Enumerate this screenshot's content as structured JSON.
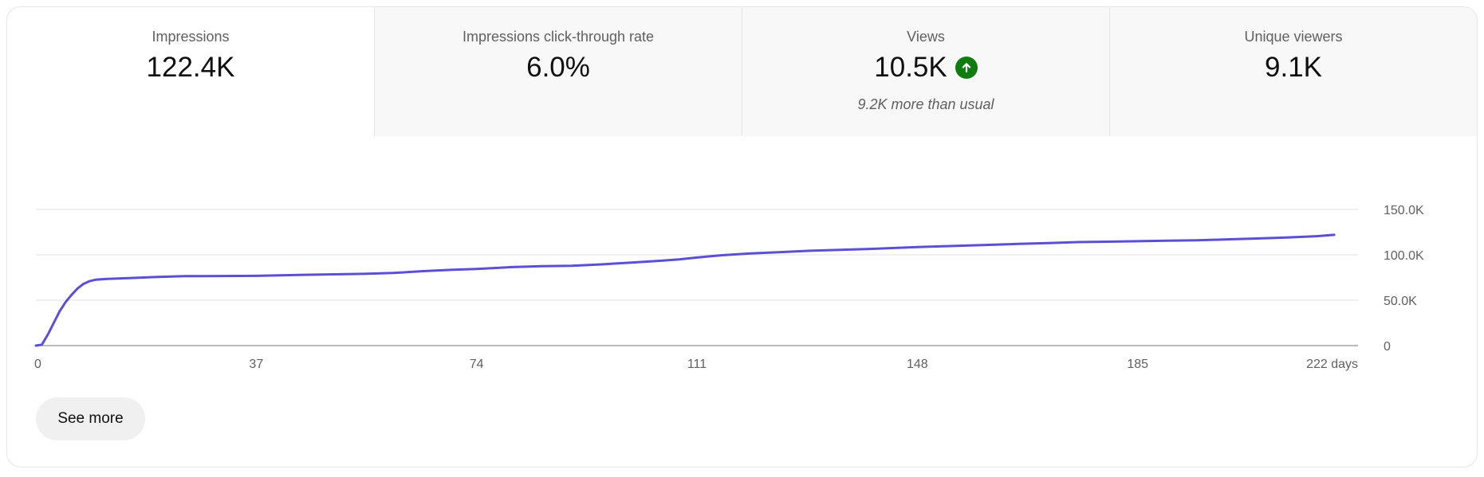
{
  "tabs": [
    {
      "label": "Impressions",
      "value": "122.4K",
      "note": ""
    },
    {
      "label": "Impressions click-through rate",
      "value": "6.0%",
      "note": ""
    },
    {
      "label": "Views",
      "value": "10.5K",
      "note": "9.2K more than usual",
      "trend_icon": "arrow-up-circle-icon",
      "trend_color": "#107c10"
    },
    {
      "label": "Unique viewers",
      "value": "9.1K",
      "note": ""
    }
  ],
  "active_tab": "Impressions",
  "see_more_label": "See more",
  "chart_data": {
    "type": "line",
    "title": "",
    "xlabel": "",
    "ylabel": "",
    "xlim": [
      0,
      222
    ],
    "ylim": [
      0,
      150000
    ],
    "x_ticks": [
      0,
      37,
      74,
      111,
      148,
      185,
      222
    ],
    "x_tick_labels": [
      "0",
      "37",
      "74",
      "111",
      "148",
      "185",
      "222 days"
    ],
    "y_ticks": [
      0,
      50000,
      100000,
      150000
    ],
    "y_tick_labels": [
      "0",
      "50.0K",
      "100.0K",
      "150.0K"
    ],
    "y_axis_side": "right",
    "grid": true,
    "line_color": "#5c4fd6",
    "series": [
      {
        "values": [
          [
            0,
            0
          ],
          [
            1,
            1000
          ],
          [
            2,
            12000
          ],
          [
            3,
            25000
          ],
          [
            4,
            38000
          ],
          [
            5,
            48000
          ],
          [
            6,
            56000
          ],
          [
            7,
            63000
          ],
          [
            8,
            68000
          ],
          [
            9,
            71000
          ],
          [
            10,
            72500
          ],
          [
            12,
            73500
          ],
          [
            16,
            74500
          ],
          [
            20,
            75500
          ],
          [
            25,
            76500
          ],
          [
            37,
            76800
          ],
          [
            45,
            78000
          ],
          [
            50,
            78500
          ],
          [
            55,
            79000
          ],
          [
            60,
            80000
          ],
          [
            65,
            82000
          ],
          [
            70,
            83500
          ],
          [
            74,
            84500
          ],
          [
            80,
            86500
          ],
          [
            85,
            87500
          ],
          [
            90,
            88000
          ],
          [
            95,
            89500
          ],
          [
            100,
            91500
          ],
          [
            105,
            93500
          ],
          [
            108,
            95000
          ],
          [
            111,
            97000
          ],
          [
            115,
            99500
          ],
          [
            120,
            101500
          ],
          [
            125,
            103000
          ],
          [
            130,
            104500
          ],
          [
            135,
            105500
          ],
          [
            140,
            106500
          ],
          [
            148,
            108500
          ],
          [
            155,
            110000
          ],
          [
            160,
            111000
          ],
          [
            165,
            112000
          ],
          [
            170,
            113000
          ],
          [
            175,
            114000
          ],
          [
            180,
            114500
          ],
          [
            185,
            115000
          ],
          [
            190,
            115500
          ],
          [
            195,
            116000
          ],
          [
            200,
            117000
          ],
          [
            205,
            118000
          ],
          [
            210,
            119000
          ],
          [
            215,
            120500
          ],
          [
            218,
            122000
          ]
        ]
      }
    ]
  }
}
